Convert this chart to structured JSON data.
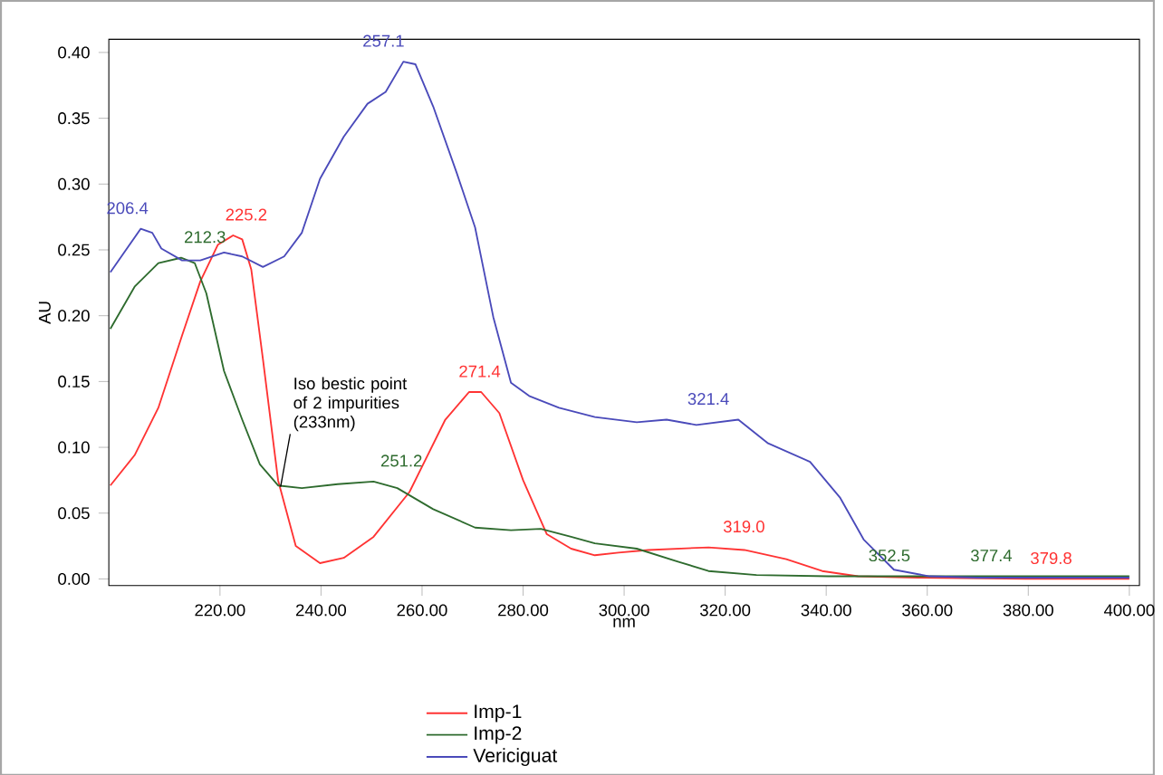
{
  "chart_data": {
    "type": "line",
    "xlabel": "nm",
    "ylabel": "AU",
    "xlim": [
      198,
      402
    ],
    "ylim": [
      -0.005,
      0.41
    ],
    "xticks": [
      {
        "value": 220,
        "label": "220.00"
      },
      {
        "value": 240,
        "label": "240.00"
      },
      {
        "value": 260,
        "label": "260.00"
      },
      {
        "value": 280,
        "label": "280.00"
      },
      {
        "value": 300,
        "label": "300.00"
      },
      {
        "value": 320,
        "label": "320.00"
      },
      {
        "value": 340,
        "label": "340.00"
      },
      {
        "value": 360,
        "label": "360.00"
      },
      {
        "value": 380,
        "label": "380.00"
      },
      {
        "value": 400,
        "label": "400.00"
      }
    ],
    "yticks": [
      {
        "value": 0,
        "label": "0.00"
      },
      {
        "value": 0.05,
        "label": "0.05"
      },
      {
        "value": 0.1,
        "label": "0.10"
      },
      {
        "value": 0.15,
        "label": "0.15"
      },
      {
        "value": 0.2,
        "label": "0.20"
      },
      {
        "value": 0.25,
        "label": "0.25"
      },
      {
        "value": 0.3,
        "label": "0.30"
      },
      {
        "value": 0.35,
        "label": "0.35"
      },
      {
        "value": 0.4,
        "label": "0.40"
      }
    ],
    "legend": "bottom",
    "grid": false,
    "marker": "none",
    "line_style": "solid",
    "series": [
      {
        "name": "Imp-1",
        "color": "#ff3333",
        "x": [
          198.3,
          203.1,
          207.8,
          212.5,
          216.1,
          219.6,
          222.6,
          224.4,
          226.2,
          228.5,
          231.5,
          235.0,
          239.8,
          244.5,
          250.4,
          257.5,
          264.6,
          269.3,
          271.7,
          275.3,
          280.0,
          284.7,
          289.5,
          294.2,
          298.9,
          304.8,
          316.7,
          323.8,
          332.1,
          339.2,
          346.3,
          358.2,
          379.5,
          400
        ],
        "values": [
          0.071,
          0.094,
          0.13,
          0.185,
          0.226,
          0.254,
          0.261,
          0.258,
          0.235,
          0.167,
          0.075,
          0.025,
          0.012,
          0.016,
          0.032,
          0.066,
          0.121,
          0.142,
          0.142,
          0.126,
          0.075,
          0.034,
          0.023,
          0.018,
          0.02,
          0.022,
          0.024,
          0.022,
          0.015,
          0.006,
          0.002,
          0.001,
          0.0,
          0.0
        ]
      },
      {
        "name": "Imp-2",
        "color": "#2e6b2e",
        "x": [
          198.3,
          203.1,
          207.8,
          212.3,
          215.0,
          217.3,
          220.8,
          224.4,
          227.9,
          231.5,
          236.2,
          243.3,
          250.4,
          255.1,
          262.2,
          270.5,
          277.6,
          283.5,
          289.5,
          294.2,
          302.5,
          310.8,
          316.7,
          326.2,
          340.4,
          400
        ],
        "values": [
          0.19,
          0.222,
          0.24,
          0.244,
          0.24,
          0.217,
          0.158,
          0.121,
          0.087,
          0.071,
          0.069,
          0.072,
          0.074,
          0.069,
          0.053,
          0.039,
          0.037,
          0.038,
          0.032,
          0.027,
          0.023,
          0.013,
          0.006,
          0.003,
          0.002,
          0.002
        ]
      },
      {
        "name": "Vericiguat",
        "color": "#4a4aba",
        "x": [
          198.3,
          204.3,
          206.6,
          208.4,
          212.5,
          216.1,
          220.8,
          224.4,
          228.5,
          232.7,
          236.2,
          239.8,
          244.5,
          249.2,
          252.8,
          256.3,
          258.7,
          262.2,
          266.9,
          270.5,
          274.1,
          277.6,
          281.2,
          287.1,
          294.2,
          302.5,
          308.4,
          314.3,
          322.6,
          328.5,
          336.8,
          342.7,
          347.4,
          353.4,
          360.5,
          370,
          400
        ],
        "values": [
          0.233,
          0.266,
          0.263,
          0.251,
          0.242,
          0.242,
          0.248,
          0.245,
          0.237,
          0.245,
          0.263,
          0.304,
          0.336,
          0.361,
          0.37,
          0.393,
          0.391,
          0.359,
          0.308,
          0.267,
          0.199,
          0.149,
          0.139,
          0.13,
          0.123,
          0.119,
          0.121,
          0.117,
          0.121,
          0.103,
          0.089,
          0.062,
          0.03,
          0.007,
          0.002,
          0.001,
          0.001
        ]
      }
    ],
    "annotations": [
      {
        "text": "206.4",
        "x": 206.4,
        "y": 0.266
      },
      {
        "text": "212.3",
        "x": 212.3,
        "y": 0.244
      },
      {
        "text": "225.2",
        "x": 225.2,
        "y": 0.261
      },
      {
        "text": "257.1",
        "x": 257.1,
        "y": 0.393
      },
      {
        "text": "251.2",
        "x": 251.2,
        "y": 0.074
      },
      {
        "text": "271.4",
        "x": 271.4,
        "y": 0.142
      },
      {
        "text": "321.4",
        "x": 321.4,
        "y": 0.121
      },
      {
        "text": "319.0",
        "x": 319.0,
        "y": 0.024
      },
      {
        "text": "352.5",
        "x": 352.5,
        "y": 0.002
      },
      {
        "text": "377.4",
        "x": 377.4,
        "y": 0.002
      },
      {
        "text": "379.8",
        "x": 379.8,
        "y": 0.0
      },
      {
        "text": "Iso bestic point of 2 impurities (233nm)",
        "x": 232.0,
        "y": 0.07
      }
    ]
  }
}
